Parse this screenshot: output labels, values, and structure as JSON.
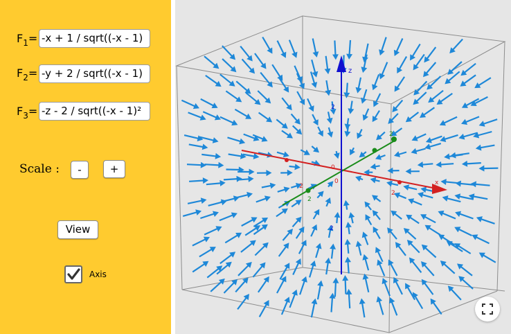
{
  "fields": [
    {
      "label": "F",
      "sub": "1",
      "value": "-x + 1 / sqrt((-x - 1)"
    },
    {
      "label": "F",
      "sub": "2",
      "value": "-y + 2 / sqrt((-x - 1)"
    },
    {
      "label": "F",
      "sub": "3",
      "value": "-z - 2 / sqrt((-x - 1)²"
    }
  ],
  "equals": "=",
  "scale": {
    "label": "Scale :",
    "minus": "-",
    "plus": "+"
  },
  "view_button": "View",
  "axis_checkbox": {
    "label": "Axis",
    "checked": true
  },
  "axes": {
    "z_label": "z",
    "x_label": "x",
    "ticks": {
      "z_pos": "2",
      "z_neg": "2",
      "x_origin": "0",
      "x_pos": "2",
      "x_neg": "2",
      "y_pos": "2",
      "y_neg": "2",
      "origin": "0"
    }
  },
  "colors": {
    "panel": "#ffcb2f",
    "arrow": "#1e88d8",
    "x_axis": "#d32020",
    "y_axis": "#1a8c1a",
    "z_axis": "#1010d0",
    "box": "#8c8c8c"
  },
  "icons": {
    "fullscreen": "fullscreen-icon",
    "checkmark": "checkmark-icon"
  }
}
